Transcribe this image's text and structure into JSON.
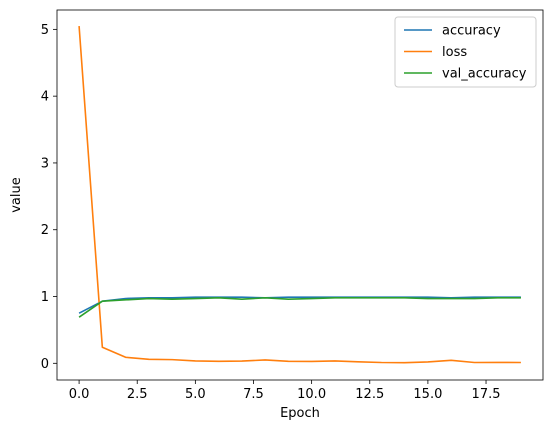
{
  "chart_data": {
    "type": "line",
    "title": "",
    "xlabel": "Epoch",
    "ylabel": "value",
    "xlim": [
      -0.95,
      19.95
    ],
    "ylim": [
      -0.25,
      5.29
    ],
    "xticks": [
      0.0,
      2.5,
      5.0,
      7.5,
      10.0,
      12.5,
      15.0,
      17.5
    ],
    "xtick_labels": [
      "0.0",
      "2.5",
      "5.0",
      "7.5",
      "10.0",
      "12.5",
      "15.0",
      "17.5"
    ],
    "yticks": [
      0,
      1,
      2,
      3,
      4,
      5
    ],
    "ytick_labels": [
      "0",
      "1",
      "2",
      "3",
      "4",
      "5"
    ],
    "grid": false,
    "legend_position": "top-right",
    "x": [
      0,
      1,
      2,
      3,
      4,
      5,
      6,
      7,
      8,
      9,
      10,
      11,
      12,
      13,
      14,
      15,
      16,
      17,
      18,
      19
    ],
    "series": [
      {
        "name": "accuracy",
        "color": "#1f77b4",
        "values": [
          0.75,
          0.93,
          0.97,
          0.98,
          0.98,
          0.99,
          0.99,
          0.99,
          0.98,
          0.99,
          0.99,
          0.99,
          0.99,
          0.99,
          0.99,
          0.99,
          0.98,
          0.99,
          0.99,
          0.99
        ]
      },
      {
        "name": "loss",
        "color": "#ff7f0e",
        "values": [
          5.05,
          0.24,
          0.09,
          0.06,
          0.055,
          0.035,
          0.03,
          0.033,
          0.05,
          0.03,
          0.028,
          0.035,
          0.022,
          0.012,
          0.01,
          0.02,
          0.045,
          0.012,
          0.013,
          0.012
        ]
      },
      {
        "name": "val_accuracy",
        "color": "#2ca02c",
        "values": [
          0.69,
          0.93,
          0.95,
          0.97,
          0.96,
          0.97,
          0.98,
          0.96,
          0.98,
          0.96,
          0.97,
          0.98,
          0.98,
          0.98,
          0.98,
          0.97,
          0.97,
          0.97,
          0.98,
          0.98
        ]
      }
    ]
  }
}
